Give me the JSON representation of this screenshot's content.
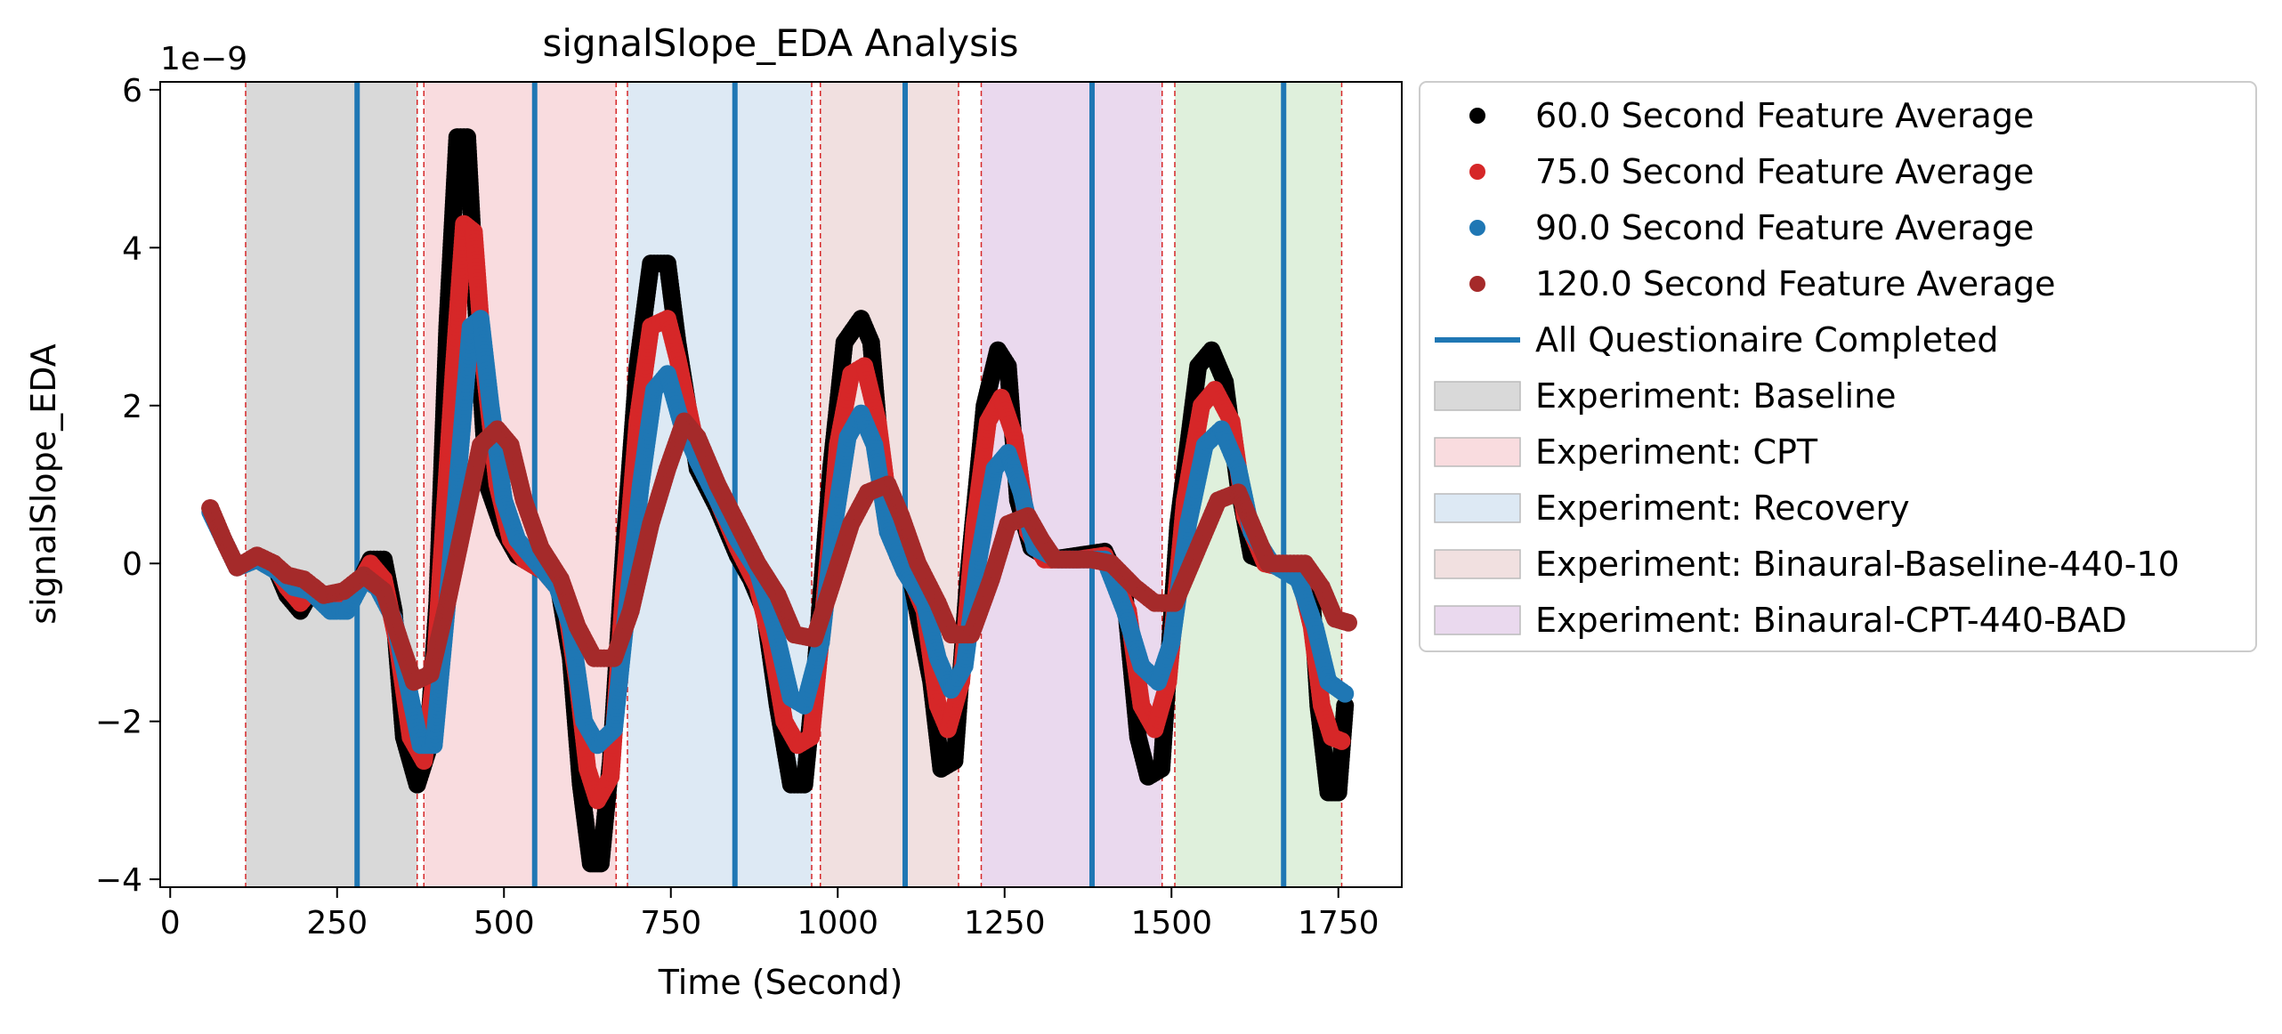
{
  "chart_data": {
    "type": "scatter",
    "title": "signalSlope_EDA Analysis",
    "xlabel": "Time (Second)",
    "ylabel": "signalSlope_EDA",
    "y_offset_text": "1e−9",
    "xlim": [
      -15,
      1845
    ],
    "ylim": [
      -4.1,
      6.1
    ],
    "x_ticks": [
      0,
      250,
      500,
      750,
      1000,
      1250,
      1500,
      1750
    ],
    "x_tick_labels": [
      "0",
      "250",
      "500",
      "750",
      "1000",
      "1250",
      "1500",
      "1750"
    ],
    "y_ticks": [
      -4,
      -2,
      0,
      2,
      4,
      6
    ],
    "y_tick_labels": [
      "−4",
      "−2",
      "0",
      "2",
      "4",
      "6"
    ],
    "grid": false,
    "legend_position": "outside-right",
    "shaded_regions": [
      {
        "x0": 113,
        "x1": 370,
        "color": "#d9d9d9",
        "label": "Experiment: Baseline"
      },
      {
        "x0": 380,
        "x1": 668,
        "color": "#f9dcdf",
        "label": "Experiment: CPT"
      },
      {
        "x0": 685,
        "x1": 961,
        "color": "#dde9f4",
        "label": "Experiment: Recovery"
      },
      {
        "x0": 974,
        "x1": 1181,
        "color": "#f1e0e0",
        "label": "Experiment: Binaural-Baseline-440-10"
      },
      {
        "x0": 1215,
        "x1": 1486,
        "color": "#ead9ee",
        "label": "Experiment: Binaural-CPT-440-BAD"
      },
      {
        "x0": 1505,
        "x1": 1755,
        "color": "#dff0dc",
        "label": ""
      }
    ],
    "dashed_lines_x": [
      113,
      370,
      380,
      668,
      685,
      961,
      974,
      1181,
      1215,
      1486,
      1505,
      1755
    ],
    "questionnaire_lines_x": [
      280,
      546,
      846,
      1101,
      1381,
      1668
    ],
    "questionnaire_label": "All Questionaire Completed",
    "series": [
      {
        "name": "60.0 Second Feature Average",
        "color": "#000000",
        "keypoints": [
          [
            60,
            0.7
          ],
          [
            80,
            0.3
          ],
          [
            100,
            -0.05
          ],
          [
            130,
            0.1
          ],
          [
            155,
            0.0
          ],
          [
            175,
            -0.4
          ],
          [
            195,
            -0.6
          ],
          [
            215,
            -0.3
          ],
          [
            235,
            -0.5
          ],
          [
            255,
            -0.55
          ],
          [
            280,
            -0.3
          ],
          [
            300,
            0.05
          ],
          [
            320,
            0.05
          ],
          [
            335,
            -0.6
          ],
          [
            350,
            -2.2
          ],
          [
            370,
            -2.8
          ],
          [
            385,
            -2.4
          ],
          [
            400,
            -0.5
          ],
          [
            415,
            3.0
          ],
          [
            430,
            5.4
          ],
          [
            445,
            5.4
          ],
          [
            460,
            3.0
          ],
          [
            475,
            1.0
          ],
          [
            500,
            0.4
          ],
          [
            520,
            0.1
          ],
          [
            550,
            -0.05
          ],
          [
            580,
            -0.2
          ],
          [
            600,
            -1.2
          ],
          [
            615,
            -2.8
          ],
          [
            630,
            -3.8
          ],
          [
            645,
            -3.8
          ],
          [
            660,
            -2.5
          ],
          [
            680,
            0.2
          ],
          [
            700,
            2.5
          ],
          [
            720,
            3.8
          ],
          [
            745,
            3.8
          ],
          [
            760,
            2.8
          ],
          [
            790,
            1.2
          ],
          [
            820,
            0.7
          ],
          [
            850,
            0.1
          ],
          [
            870,
            -0.2
          ],
          [
            890,
            -0.6
          ],
          [
            910,
            -1.8
          ],
          [
            930,
            -2.8
          ],
          [
            950,
            -2.8
          ],
          [
            965,
            -1.5
          ],
          [
            990,
            1.2
          ],
          [
            1010,
            2.8
          ],
          [
            1035,
            3.1
          ],
          [
            1050,
            2.8
          ],
          [
            1070,
            0.8
          ],
          [
            1090,
            0.1
          ],
          [
            1110,
            -0.2
          ],
          [
            1140,
            -1.5
          ],
          [
            1155,
            -2.6
          ],
          [
            1175,
            -2.5
          ],
          [
            1195,
            -0.2
          ],
          [
            1220,
            2.0
          ],
          [
            1240,
            2.7
          ],
          [
            1255,
            2.5
          ],
          [
            1270,
            0.8
          ],
          [
            1290,
            0.2
          ],
          [
            1320,
            0.05
          ],
          [
            1360,
            0.1
          ],
          [
            1400,
            0.15
          ],
          [
            1430,
            -0.4
          ],
          [
            1450,
            -2.2
          ],
          [
            1465,
            -2.7
          ],
          [
            1485,
            -2.6
          ],
          [
            1510,
            0.5
          ],
          [
            1540,
            2.5
          ],
          [
            1560,
            2.7
          ],
          [
            1580,
            2.3
          ],
          [
            1600,
            1.0
          ],
          [
            1620,
            0.1
          ],
          [
            1650,
            0.0
          ],
          [
            1690,
            -0.05
          ],
          [
            1710,
            -0.4
          ],
          [
            1720,
            -1.8
          ],
          [
            1735,
            -2.9
          ],
          [
            1750,
            -2.9
          ],
          [
            1760,
            -1.8
          ]
        ]
      },
      {
        "name": "75.0 Second Feature Average",
        "color": "#d62728",
        "keypoints": [
          [
            60,
            0.7
          ],
          [
            80,
            0.3
          ],
          [
            100,
            -0.05
          ],
          [
            130,
            0.1
          ],
          [
            155,
            0.0
          ],
          [
            175,
            -0.3
          ],
          [
            195,
            -0.5
          ],
          [
            215,
            -0.3
          ],
          [
            235,
            -0.5
          ],
          [
            255,
            -0.55
          ],
          [
            280,
            -0.3
          ],
          [
            300,
            0.0
          ],
          [
            320,
            -0.2
          ],
          [
            340,
            -1.0
          ],
          [
            360,
            -2.2
          ],
          [
            380,
            -2.5
          ],
          [
            395,
            -1.5
          ],
          [
            410,
            0.5
          ],
          [
            425,
            2.5
          ],
          [
            440,
            4.3
          ],
          [
            455,
            4.2
          ],
          [
            470,
            2.5
          ],
          [
            490,
            1.0
          ],
          [
            510,
            0.3
          ],
          [
            530,
            0.05
          ],
          [
            560,
            -0.1
          ],
          [
            590,
            -0.4
          ],
          [
            610,
            -1.5
          ],
          [
            625,
            -2.6
          ],
          [
            640,
            -3.0
          ],
          [
            660,
            -2.7
          ],
          [
            680,
            -0.3
          ],
          [
            700,
            1.8
          ],
          [
            720,
            3.0
          ],
          [
            745,
            3.1
          ],
          [
            760,
            2.6
          ],
          [
            785,
            1.6
          ],
          [
            820,
            0.8
          ],
          [
            850,
            0.2
          ],
          [
            880,
            -0.3
          ],
          [
            900,
            -1.0
          ],
          [
            920,
            -2.0
          ],
          [
            940,
            -2.3
          ],
          [
            960,
            -2.2
          ],
          [
            980,
            -0.5
          ],
          [
            1000,
            1.5
          ],
          [
            1020,
            2.4
          ],
          [
            1040,
            2.5
          ],
          [
            1060,
            1.8
          ],
          [
            1080,
            0.5
          ],
          [
            1100,
            0.0
          ],
          [
            1130,
            -0.6
          ],
          [
            1150,
            -1.8
          ],
          [
            1165,
            -2.1
          ],
          [
            1185,
            -1.5
          ],
          [
            1205,
            0.5
          ],
          [
            1225,
            1.8
          ],
          [
            1245,
            2.1
          ],
          [
            1265,
            1.6
          ],
          [
            1285,
            0.4
          ],
          [
            1310,
            0.05
          ],
          [
            1360,
            0.05
          ],
          [
            1400,
            0.1
          ],
          [
            1435,
            -0.6
          ],
          [
            1455,
            -1.8
          ],
          [
            1475,
            -2.1
          ],
          [
            1495,
            -1.5
          ],
          [
            1520,
            0.8
          ],
          [
            1545,
            2.0
          ],
          [
            1565,
            2.2
          ],
          [
            1590,
            1.8
          ],
          [
            1610,
            0.6
          ],
          [
            1640,
            0.0
          ],
          [
            1690,
            -0.1
          ],
          [
            1710,
            -0.8
          ],
          [
            1725,
            -1.8
          ],
          [
            1740,
            -2.2
          ],
          [
            1755,
            -2.25
          ]
        ]
      },
      {
        "name": "90.0 Second Feature Average",
        "color": "#1f77b4",
        "keypoints": [
          [
            60,
            0.65
          ],
          [
            80,
            0.3
          ],
          [
            100,
            -0.05
          ],
          [
            130,
            0.05
          ],
          [
            160,
            -0.1
          ],
          [
            185,
            -0.3
          ],
          [
            210,
            -0.35
          ],
          [
            240,
            -0.6
          ],
          [
            265,
            -0.6
          ],
          [
            290,
            -0.2
          ],
          [
            310,
            -0.3
          ],
          [
            335,
            -0.7
          ],
          [
            355,
            -1.5
          ],
          [
            375,
            -2.3
          ],
          [
            395,
            -2.3
          ],
          [
            415,
            -0.5
          ],
          [
            435,
            1.5
          ],
          [
            450,
            3.0
          ],
          [
            465,
            3.1
          ],
          [
            480,
            2.0
          ],
          [
            500,
            0.8
          ],
          [
            520,
            0.3
          ],
          [
            550,
            0.0
          ],
          [
            580,
            -0.3
          ],
          [
            600,
            -0.8
          ],
          [
            620,
            -2.0
          ],
          [
            640,
            -2.3
          ],
          [
            665,
            -2.1
          ],
          [
            685,
            -0.5
          ],
          [
            705,
            1.0
          ],
          [
            725,
            2.2
          ],
          [
            745,
            2.4
          ],
          [
            765,
            1.8
          ],
          [
            790,
            1.3
          ],
          [
            820,
            0.8
          ],
          [
            850,
            0.3
          ],
          [
            880,
            -0.1
          ],
          [
            905,
            -0.8
          ],
          [
            930,
            -1.7
          ],
          [
            950,
            -1.8
          ],
          [
            975,
            -1.0
          ],
          [
            995,
            0.5
          ],
          [
            1015,
            1.6
          ],
          [
            1035,
            1.9
          ],
          [
            1055,
            1.5
          ],
          [
            1075,
            0.4
          ],
          [
            1100,
            -0.1
          ],
          [
            1130,
            -0.5
          ],
          [
            1150,
            -1.2
          ],
          [
            1170,
            -1.6
          ],
          [
            1190,
            -1.3
          ],
          [
            1210,
            0.0
          ],
          [
            1235,
            1.2
          ],
          [
            1255,
            1.4
          ],
          [
            1275,
            0.9
          ],
          [
            1295,
            0.2
          ],
          [
            1330,
            0.05
          ],
          [
            1400,
            0.05
          ],
          [
            1430,
            -0.6
          ],
          [
            1455,
            -1.3
          ],
          [
            1480,
            -1.5
          ],
          [
            1500,
            -1.0
          ],
          [
            1525,
            0.5
          ],
          [
            1550,
            1.5
          ],
          [
            1575,
            1.7
          ],
          [
            1600,
            1.2
          ],
          [
            1620,
            0.4
          ],
          [
            1650,
            0.0
          ],
          [
            1690,
            -0.2
          ],
          [
            1715,
            -0.8
          ],
          [
            1735,
            -1.5
          ],
          [
            1760,
            -1.65
          ]
        ]
      },
      {
        "name": "120.0 Second Feature Average",
        "color": "#a52a2a",
        "keypoints": [
          [
            60,
            0.7
          ],
          [
            80,
            0.3
          ],
          [
            100,
            -0.05
          ],
          [
            130,
            0.1
          ],
          [
            155,
            0.0
          ],
          [
            175,
            -0.15
          ],
          [
            200,
            -0.2
          ],
          [
            230,
            -0.4
          ],
          [
            260,
            -0.35
          ],
          [
            290,
            -0.15
          ],
          [
            320,
            -0.35
          ],
          [
            345,
            -1.0
          ],
          [
            365,
            -1.5
          ],
          [
            390,
            -1.4
          ],
          [
            415,
            -0.5
          ],
          [
            440,
            0.5
          ],
          [
            465,
            1.5
          ],
          [
            490,
            1.7
          ],
          [
            510,
            1.5
          ],
          [
            530,
            0.8
          ],
          [
            555,
            0.2
          ],
          [
            585,
            -0.2
          ],
          [
            610,
            -0.8
          ],
          [
            635,
            -1.2
          ],
          [
            665,
            -1.2
          ],
          [
            690,
            -0.6
          ],
          [
            720,
            0.5
          ],
          [
            745,
            1.2
          ],
          [
            770,
            1.8
          ],
          [
            790,
            1.6
          ],
          [
            820,
            1.0
          ],
          [
            850,
            0.5
          ],
          [
            880,
            0.0
          ],
          [
            910,
            -0.4
          ],
          [
            935,
            -0.9
          ],
          [
            965,
            -0.95
          ],
          [
            990,
            -0.3
          ],
          [
            1020,
            0.5
          ],
          [
            1045,
            0.9
          ],
          [
            1075,
            1.0
          ],
          [
            1095,
            0.6
          ],
          [
            1120,
            0.0
          ],
          [
            1150,
            -0.5
          ],
          [
            1170,
            -0.9
          ],
          [
            1200,
            -0.9
          ],
          [
            1230,
            -0.2
          ],
          [
            1255,
            0.5
          ],
          [
            1285,
            0.6
          ],
          [
            1305,
            0.3
          ],
          [
            1325,
            0.05
          ],
          [
            1380,
            0.05
          ],
          [
            1410,
            0.0
          ],
          [
            1445,
            -0.3
          ],
          [
            1475,
            -0.5
          ],
          [
            1505,
            -0.5
          ],
          [
            1540,
            0.2
          ],
          [
            1570,
            0.8
          ],
          [
            1600,
            0.9
          ],
          [
            1620,
            0.5
          ],
          [
            1645,
            0.0
          ],
          [
            1700,
            0.0
          ],
          [
            1725,
            -0.3
          ],
          [
            1745,
            -0.7
          ],
          [
            1765,
            -0.75
          ]
        ]
      }
    ]
  }
}
